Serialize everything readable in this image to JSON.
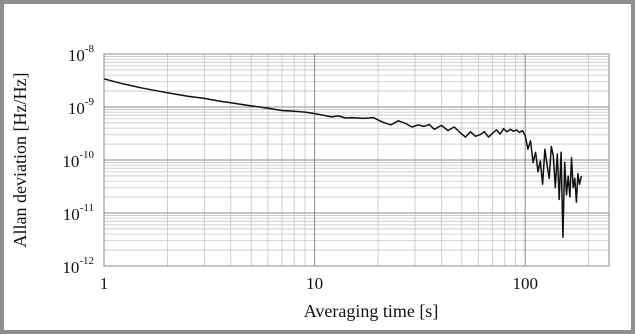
{
  "chart_data": {
    "type": "line",
    "title": "",
    "xlabel": "Averaging time [s]",
    "ylabel": "Allan deviation [Hz/Hz]",
    "x_scale": "log",
    "y_scale": "log",
    "xlim": [
      1,
      250
    ],
    "ylim": [
      1e-12,
      1e-08
    ],
    "grid": true,
    "x_ticks": [
      {
        "value": 1,
        "label": "1"
      },
      {
        "value": 10,
        "label": "10"
      },
      {
        "value": 100,
        "label": "100"
      }
    ],
    "y_ticks": [
      {
        "value": 1e-08,
        "base": "10",
        "exp": "-8"
      },
      {
        "value": 1e-09,
        "base": "10",
        "exp": "-9"
      },
      {
        "value": 1e-10,
        "base": "10",
        "exp": "-10"
      },
      {
        "value": 1e-11,
        "base": "10",
        "exp": "-11"
      },
      {
        "value": 1e-12,
        "base": "10",
        "exp": "-12"
      }
    ],
    "series": [
      {
        "color": "#111111",
        "x": [
          1,
          1.2,
          1.5,
          2,
          2.5,
          3,
          3.5,
          4,
          5,
          6,
          7,
          8,
          9,
          10,
          11,
          12,
          13,
          14,
          15,
          17,
          19,
          21,
          23,
          25,
          27,
          29,
          31,
          33,
          35,
          37,
          40,
          43,
          46,
          49,
          52,
          55,
          58,
          61,
          64,
          67,
          70,
          73,
          76,
          79,
          82,
          85,
          88,
          91,
          94,
          97,
          100,
          103,
          106,
          109,
          112,
          115,
          118,
          121,
          124,
          127,
          130,
          133,
          136,
          139,
          142,
          145,
          148,
          151,
          154,
          157,
          160,
          163,
          166,
          169,
          172,
          175,
          178,
          181,
          185
        ],
        "y": [
          3.4e-09,
          2.8e-09,
          2.3e-09,
          1.85e-09,
          1.6e-09,
          1.45e-09,
          1.3e-09,
          1.2e-09,
          1.05e-09,
          9.5e-10,
          8.6e-10,
          8.3e-10,
          8e-10,
          7.5e-10,
          7e-10,
          6.5e-10,
          6.8e-10,
          6.2e-10,
          6.3e-10,
          6.1e-10,
          6.3e-10,
          5.2e-10,
          4.6e-10,
          5.5e-10,
          4.9e-10,
          4.2e-10,
          4.6e-10,
          4.3e-10,
          4.7e-10,
          3.8e-10,
          4.5e-10,
          3.6e-10,
          4.2e-10,
          3.3e-10,
          2.7e-10,
          3.4e-10,
          2.8e-10,
          3e-10,
          3.4e-10,
          2.7e-10,
          3.2e-10,
          3.7e-10,
          3.1e-10,
          3.9e-10,
          3.4e-10,
          3.8e-10,
          3.5e-10,
          3.7e-10,
          3.3e-10,
          3.6e-10,
          2.9e-10,
          1.6e-10,
          2.3e-10,
          9e-11,
          1.4e-10,
          6e-11,
          9.5e-11,
          3.5e-11,
          1.6e-10,
          8e-11,
          4.5e-11,
          1.8e-10,
          1.2e-10,
          3e-11,
          1.3e-10,
          1.8e-11,
          1.4e-10,
          3.5e-12,
          9e-11,
          2.2e-11,
          5e-11,
          2e-11,
          1.1e-10,
          3e-11,
          4.5e-11,
          1.6e-11,
          5.5e-11,
          3.5e-11,
          5e-11
        ]
      }
    ]
  },
  "colors": {
    "frame": "#8e8e8e",
    "plot_border": "#8a8a8a",
    "major_grid": "#8a8a8a",
    "minor_grid": "#c4c4c4",
    "line": "#111111"
  }
}
